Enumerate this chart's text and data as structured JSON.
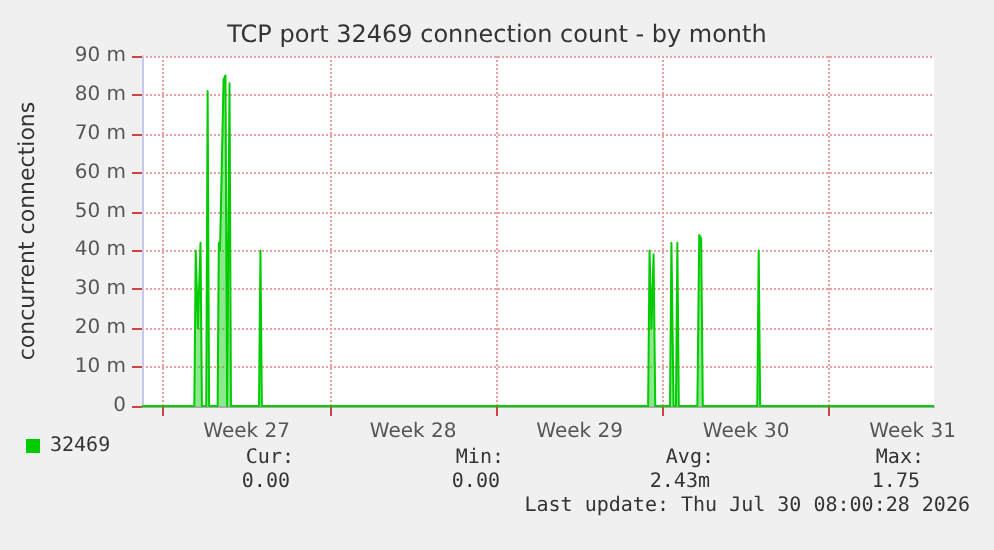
{
  "chart_data": {
    "type": "area",
    "title": "TCP port 32469 connection count - by month",
    "ylabel": "concurrent connections",
    "series": [
      {
        "name": "32469",
        "color": "#00cc00",
        "x": [
          "2026-06-28T02:24",
          "2026-06-30T07:12",
          "2026-06-30T08:38",
          "2026-06-30T10:48",
          "2026-06-30T13:26",
          "2026-06-30T14:53",
          "2026-06-30T19:12",
          "2026-06-30T20:38",
          "2026-06-30T22:05",
          "2026-07-01T06:43",
          "2026-07-01T07:55",
          "2026-07-01T09:07",
          "2026-07-01T12:43",
          "2026-07-01T14:38",
          "2026-07-01T16:19",
          "2026-07-01T17:17",
          "2026-07-01T18:43",
          "2026-07-01T20:10",
          "2026-07-03T00:29",
          "2026-07-03T01:55",
          "2026-07-03T03:22",
          "2026-07-19T09:07",
          "2026-07-19T10:34",
          "2026-07-19T12:29",
          "2026-07-19T14:38",
          "2026-07-19T16:19",
          "2026-07-20T07:12",
          "2026-07-20T08:38",
          "2026-07-20T10:48",
          "2026-07-20T13:12",
          "2026-07-20T14:38",
          "2026-07-20T16:05",
          "2026-07-21T10:48",
          "2026-07-21T12:43",
          "2026-07-21T14:38",
          "2026-07-21T16:19",
          "2026-07-23T23:17",
          "2026-07-24T00:43",
          "2026-07-24T02:10",
          "2026-07-31T09:36"
        ],
        "values": [
          0,
          0,
          40,
          20,
          42,
          0,
          0,
          81,
          0,
          0,
          42,
          40,
          84,
          85,
          0,
          0,
          83,
          0,
          0,
          40,
          0,
          0,
          40,
          20,
          39,
          0,
          0,
          42,
          0,
          0,
          42,
          0,
          0,
          44,
          43,
          0,
          0,
          40,
          0,
          0
        ]
      }
    ],
    "xlim": [
      "2026-06-28T02:24",
      "2026-07-31T09:36"
    ],
    "xticks": [
      {
        "value": "2026-06-29",
        "label": null
      },
      {
        "value": "2026-07-02T12:00",
        "label": "Week 27"
      },
      {
        "value": "2026-07-06",
        "label": null
      },
      {
        "value": "2026-07-09T12:00",
        "label": "Week 28"
      },
      {
        "value": "2026-07-13",
        "label": null
      },
      {
        "value": "2026-07-16T12:00",
        "label": "Week 29"
      },
      {
        "value": "2026-07-20",
        "label": null
      },
      {
        "value": "2026-07-23T12:00",
        "label": "Week 30"
      },
      {
        "value": "2026-07-27",
        "label": null
      },
      {
        "value": "2026-07-30T12:00",
        "label": "Week 31"
      }
    ],
    "ylim": [
      0,
      90
    ],
    "yticks": [
      0,
      {
        "value": 10,
        "label": "10 m"
      },
      {
        "value": 20,
        "label": "20 m"
      },
      {
        "value": 30,
        "label": "30 m"
      },
      {
        "value": 40,
        "label": "40 m"
      },
      {
        "value": 50,
        "label": "50 m"
      },
      {
        "value": 60,
        "label": "60 m"
      },
      {
        "value": 70,
        "label": "70 m"
      },
      {
        "value": 80,
        "label": "80 m"
      },
      {
        "value": 90,
        "label": "90 m"
      }
    ],
    "grid": true,
    "legend": "bottom left",
    "annotations": [
      "Cur:",
      "Min:",
      "Avg:",
      "Max:",
      "0.00",
      "0.00",
      "2.43m",
      "1.75",
      "Last update: Thu Jul 30 08:00:28 2026"
    ]
  }
}
